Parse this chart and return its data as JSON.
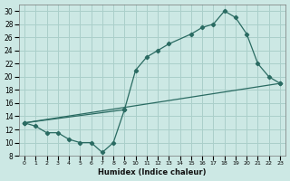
{
  "xlabel": "Humidex (Indice chaleur)",
  "bg_color": "#cce8e4",
  "line_color": "#2a6b62",
  "grid_color": "#aacfca",
  "xlim": [
    -0.5,
    23.5
  ],
  "ylim": [
    8,
    31
  ],
  "yticks": [
    8,
    10,
    12,
    14,
    16,
    18,
    20,
    22,
    24,
    26,
    28,
    30
  ],
  "xticks": [
    0,
    1,
    2,
    3,
    4,
    5,
    6,
    7,
    8,
    9,
    10,
    11,
    12,
    13,
    14,
    15,
    16,
    17,
    18,
    19,
    20,
    21,
    22,
    23
  ],
  "line1_x": [
    0,
    1,
    2,
    3,
    4,
    5,
    6,
    7,
    8,
    9
  ],
  "line1_y": [
    13,
    12.5,
    11.5,
    11.5,
    10.5,
    10,
    10,
    8.5,
    10,
    15
  ],
  "line2_x": [
    0,
    9,
    10,
    11,
    12,
    13,
    15,
    16,
    17,
    18,
    19,
    20,
    21,
    22,
    23
  ],
  "line2_y": [
    13,
    15,
    21,
    23,
    24,
    25,
    26.5,
    27.5,
    28,
    30,
    29,
    26.5,
    22,
    20,
    19
  ]
}
